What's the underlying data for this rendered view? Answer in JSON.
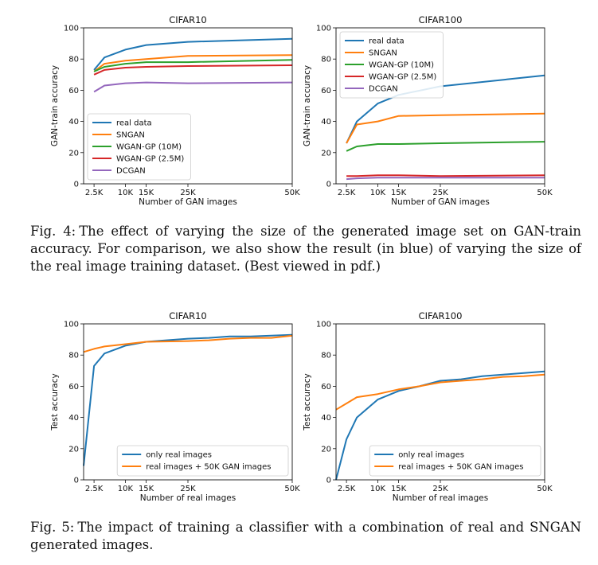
{
  "colors": {
    "blue": "#1f77b4",
    "orange": "#ff7f0e",
    "green": "#2ca02c",
    "red": "#d62728",
    "purple": "#9467bd"
  },
  "figures": [
    {
      "caption_label": "Fig. 4:",
      "caption_text": "The effect of varying the size of the generated image set on GAN-train accuracy. For comparison, we also show the result (in blue) of varying the size of the real image training dataset. (Best viewed in pdf.)"
    },
    {
      "caption_label": "Fig. 5:",
      "caption_text": "The impact of training a classifier with a combination of real and SNGAN generated images."
    }
  ],
  "chart_data": [
    {
      "type": "line",
      "title": "CIFAR10",
      "xlabel": "Number of GAN images",
      "ylabel": "GAN-train accuracy",
      "xlim": [
        0,
        50000
      ],
      "ylim": [
        0,
        100
      ],
      "xticks": [
        2500,
        10000,
        15000,
        25000,
        50000
      ],
      "xticklabels": [
        "2.5K",
        "10K",
        "15K",
        "25K",
        "50K"
      ],
      "yticks": [
        0,
        20,
        40,
        60,
        80,
        100
      ],
      "legend": "lower-left",
      "series": [
        {
          "name": "real data",
          "color": "blue",
          "x": [
            2500,
            5000,
            10000,
            15000,
            25000,
            50000
          ],
          "y": [
            73,
            81,
            86,
            89,
            91,
            93
          ]
        },
        {
          "name": "SNGAN",
          "color": "orange",
          "x": [
            2500,
            5000,
            10000,
            15000,
            25000,
            50000
          ],
          "y": [
            72,
            77,
            79,
            80,
            82,
            82.5
          ]
        },
        {
          "name": "WGAN-GP (10M)",
          "color": "green",
          "x": [
            2500,
            5000,
            10000,
            15000,
            25000,
            50000
          ],
          "y": [
            72,
            75,
            77,
            78,
            78,
            79.5
          ]
        },
        {
          "name": "WGAN-GP (2.5M)",
          "color": "red",
          "x": [
            2500,
            5000,
            10000,
            15000,
            25000,
            50000
          ],
          "y": [
            70,
            73,
            74.5,
            75,
            75.5,
            76
          ]
        },
        {
          "name": "DCGAN",
          "color": "purple",
          "x": [
            2500,
            5000,
            10000,
            15000,
            25000,
            50000
          ],
          "y": [
            59,
            63,
            64.5,
            65,
            64.5,
            65
          ]
        }
      ]
    },
    {
      "type": "line",
      "title": "CIFAR100",
      "xlabel": "Number of GAN images",
      "ylabel": "GAN-train accuracy",
      "xlim": [
        0,
        50000
      ],
      "ylim": [
        0,
        100
      ],
      "xticks": [
        2500,
        10000,
        15000,
        25000,
        50000
      ],
      "xticklabels": [
        "2.5K",
        "10K",
        "15K",
        "25K",
        "50K"
      ],
      "yticks": [
        0,
        20,
        40,
        60,
        80,
        100
      ],
      "legend": "top-left",
      "series": [
        {
          "name": "real data",
          "color": "blue",
          "x": [
            2500,
            5000,
            10000,
            15000,
            25000,
            50000
          ],
          "y": [
            26,
            40,
            51.5,
            57,
            62.5,
            69.5
          ]
        },
        {
          "name": "SNGAN",
          "color": "orange",
          "x": [
            2500,
            5000,
            10000,
            15000,
            25000,
            50000
          ],
          "y": [
            26,
            38,
            40,
            43.5,
            44,
            45
          ]
        },
        {
          "name": "WGAN-GP (10M)",
          "color": "green",
          "x": [
            2500,
            5000,
            10000,
            15000,
            25000,
            50000
          ],
          "y": [
            21,
            24,
            25.5,
            25.5,
            26,
            27
          ]
        },
        {
          "name": "WGAN-GP (2.5M)",
          "color": "red",
          "x": [
            2500,
            5000,
            10000,
            15000,
            25000,
            50000
          ],
          "y": [
            5,
            5,
            5.5,
            5.5,
            5,
            5.5
          ]
        },
        {
          "name": "DCGAN",
          "color": "purple",
          "x": [
            2500,
            5000,
            10000,
            15000,
            25000,
            50000
          ],
          "y": [
            3,
            3.5,
            4,
            4,
            4,
            4
          ]
        }
      ]
    },
    {
      "type": "line",
      "title": "CIFAR10",
      "xlabel": "Number of real images",
      "ylabel": "Test accuracy",
      "xlim": [
        0,
        50000
      ],
      "ylim": [
        0,
        100
      ],
      "xticks": [
        2500,
        10000,
        15000,
        25000,
        50000
      ],
      "xticklabels": [
        "2.5K",
        "10K",
        "15K",
        "25K",
        "50K"
      ],
      "yticks": [
        0,
        20,
        40,
        60,
        80,
        100
      ],
      "legend": "lower-right",
      "series": [
        {
          "name": "only real images",
          "color": "blue",
          "x": [
            0,
            2500,
            5000,
            10000,
            15000,
            25000,
            30000,
            35000,
            40000,
            45000,
            50000
          ],
          "y": [
            9,
            73,
            81,
            86,
            88.5,
            90.5,
            91,
            92,
            92,
            92.5,
            93
          ]
        },
        {
          "name": "real images + 50K GAN images",
          "color": "orange",
          "x": [
            0,
            2500,
            5000,
            10000,
            15000,
            25000,
            30000,
            35000,
            40000,
            45000,
            50000
          ],
          "y": [
            82,
            84,
            85.5,
            87,
            88.5,
            89,
            89.5,
            90.5,
            91,
            91,
            92.5
          ]
        }
      ]
    },
    {
      "type": "line",
      "title": "CIFAR100",
      "xlabel": "Number of real images",
      "ylabel": "Test accuracy",
      "xlim": [
        0,
        50000
      ],
      "ylim": [
        0,
        100
      ],
      "xticks": [
        2500,
        10000,
        15000,
        25000,
        50000
      ],
      "xticklabels": [
        "2.5K",
        "10K",
        "15K",
        "25K",
        "50K"
      ],
      "yticks": [
        0,
        20,
        40,
        60,
        80,
        100
      ],
      "legend": "lower-right",
      "series": [
        {
          "name": "only real images",
          "color": "blue",
          "x": [
            0,
            2500,
            5000,
            10000,
            15000,
            20000,
            25000,
            30000,
            35000,
            40000,
            45000,
            50000
          ],
          "y": [
            0,
            26,
            40,
            51.5,
            57,
            60,
            63.5,
            64.5,
            66.5,
            67.5,
            68.5,
            69.5
          ]
        },
        {
          "name": "real images + 50K GAN images",
          "color": "orange",
          "x": [
            0,
            2500,
            5000,
            10000,
            15000,
            20000,
            25000,
            30000,
            35000,
            40000,
            45000,
            50000
          ],
          "y": [
            45,
            49,
            53,
            55,
            58,
            60,
            62.5,
            63.5,
            64.5,
            66,
            66.5,
            67.5
          ]
        }
      ]
    }
  ]
}
